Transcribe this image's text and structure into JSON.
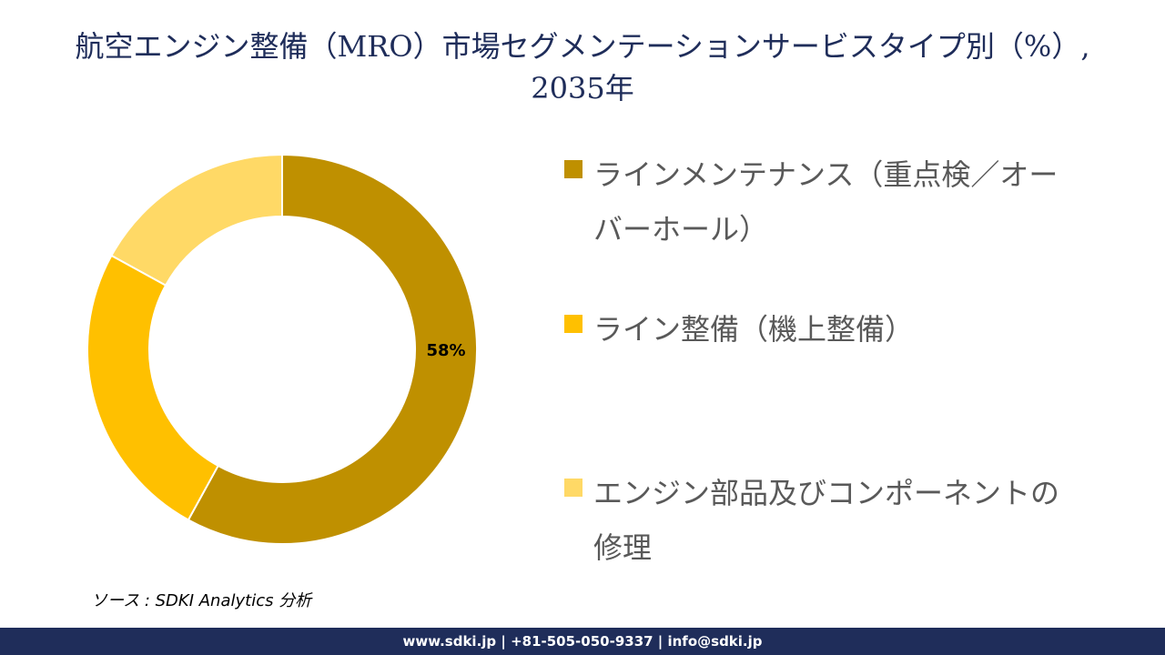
{
  "chart_data": {
    "type": "donut",
    "title": "航空エンジン整備（MRO）市場セグメンテーションサービスタイプ別（%）, 2035年",
    "categories": [
      "ラインメンテナンス（重点検／オーバーホール）",
      "ライン整備（機上整備）",
      "エンジン部品及びコンポーネントの修理"
    ],
    "values": [
      58,
      25,
      17
    ],
    "value_labels": [
      "58%",
      null,
      null
    ],
    "colors": [
      "#bf9000",
      "#ffc000",
      "#ffd966"
    ],
    "source": "ソース : SDKI Analytics 分析",
    "footer": "www.sdki.jp | +81-505-050-9337 | info@sdki.jp"
  }
}
